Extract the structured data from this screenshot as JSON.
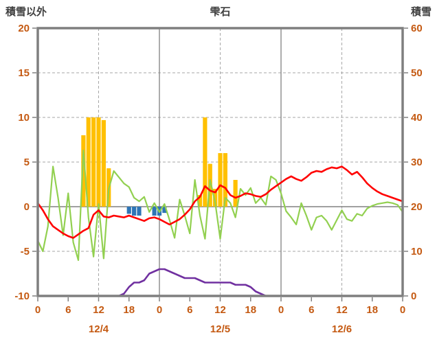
{
  "header": {
    "left_axis_title": "積雪以外",
    "chart_title": "雫石",
    "right_axis_title": "積雪"
  },
  "colors": {
    "background": "#FFFFFF",
    "border": "#7F7F7F",
    "axis_line": "#808080",
    "grid": "#A6A6A6",
    "axis_text": "#C45911",
    "title_text": "#3F3F3F"
  },
  "chart_data": {
    "type": "mixed",
    "title": "雫石",
    "left_axis": {
      "title": "積雪以外",
      "min": -10,
      "max": 20,
      "ticks": [
        20,
        15,
        10,
        5,
        0,
        -5,
        -10
      ]
    },
    "right_axis": {
      "title": "積雪",
      "min": 0,
      "max": 60,
      "ticks": [
        60,
        50,
        40,
        30,
        20,
        10,
        0
      ]
    },
    "x_axis": {
      "hours_total": 72,
      "tick_step": 6,
      "tick_labels": [
        "0",
        "6",
        "12",
        "18",
        "0",
        "6",
        "12",
        "18",
        "0",
        "6",
        "12",
        "18",
        "0"
      ],
      "date_labels": [
        {
          "label": "12/4",
          "hour": 12
        },
        {
          "label": "12/5",
          "hour": 36
        },
        {
          "label": "12/6",
          "hour": 60
        }
      ]
    },
    "grid": {
      "h_dashed": [
        15,
        10,
        5,
        -5
      ],
      "h_solid": [
        0
      ],
      "v_dashed": [
        12,
        36,
        60
      ],
      "v_solid": [
        24,
        48
      ]
    },
    "series": {
      "orange_bars": {
        "axis": "left",
        "color": "#FFC000",
        "points": [
          {
            "hour": 9,
            "value": 8.0
          },
          {
            "hour": 10,
            "value": 10.0
          },
          {
            "hour": 11,
            "value": 10.0
          },
          {
            "hour": 12,
            "value": 10.0
          },
          {
            "hour": 13,
            "value": 9.7
          },
          {
            "hour": 14,
            "value": 4.3
          },
          {
            "hour": 32,
            "value": 1.3
          },
          {
            "hour": 33,
            "value": 10.0
          },
          {
            "hour": 34,
            "value": 4.8
          },
          {
            "hour": 35,
            "value": 2.0
          },
          {
            "hour": 36,
            "value": 6.0
          },
          {
            "hour": 37,
            "value": 6.0
          },
          {
            "hour": 39,
            "value": 3.0
          }
        ]
      },
      "blue_bars": {
        "axis": "left",
        "color": "#2E75B6",
        "points": [
          {
            "hour": 18,
            "value": -0.8
          },
          {
            "hour": 19,
            "value": -1.0
          },
          {
            "hour": 20,
            "value": -1.0
          },
          {
            "hour": 23,
            "value": -1.0
          },
          {
            "hour": 24,
            "value": -1.0
          },
          {
            "hour": 25,
            "value": -0.7
          }
        ]
      },
      "red_line": {
        "axis": "left",
        "color": "#FF0000",
        "start_hour": 0,
        "step": 1,
        "values": [
          0.4,
          -0.4,
          -1.4,
          -2.2,
          -2.6,
          -3.0,
          -3.3,
          -3.5,
          -3.1,
          -2.7,
          -2.4,
          -0.9,
          -0.4,
          -1.1,
          -1.2,
          -1.0,
          -1.1,
          -1.2,
          -1.0,
          -1.2,
          -1.4,
          -1.6,
          -1.3,
          -1.2,
          -1.4,
          -1.7,
          -2.0,
          -1.7,
          -1.4,
          -0.9,
          -0.3,
          0.6,
          1.1,
          2.3,
          1.8,
          1.6,
          2.4,
          2.1,
          1.3,
          1.0,
          1.2,
          1.5,
          1.4,
          1.2,
          1.1,
          1.4,
          1.9,
          2.3,
          2.7,
          3.1,
          3.4,
          3.1,
          2.9,
          3.3,
          3.8,
          4.0,
          3.9,
          4.2,
          4.4,
          4.3,
          4.5,
          4.1,
          3.6,
          3.9,
          3.3,
          2.6,
          2.1,
          1.7,
          1.4,
          1.2,
          1.0,
          0.8,
          0.6
        ]
      },
      "green_line": {
        "axis": "left",
        "color": "#92D050",
        "start_hour": 0,
        "step": 1,
        "values": [
          -3.8,
          -5.0,
          -2.2,
          4.5,
          1.0,
          -3.2,
          1.5,
          -4.0,
          -6.0,
          6.3,
          -1.2,
          -5.6,
          0.3,
          -5.8,
          2.0,
          4.0,
          3.3,
          2.6,
          2.2,
          1.0,
          0.6,
          1.1,
          -0.6,
          0.4,
          -0.6,
          0.3,
          -1.5,
          -3.5,
          0.8,
          -1.0,
          -3.0,
          3.0,
          -1.0,
          -3.6,
          3.0,
          0.5,
          -3.6,
          1.0,
          0.4,
          -1.2,
          2.0,
          1.3,
          2.1,
          0.4,
          1.0,
          0.2,
          3.4,
          3.0,
          1.5,
          -0.5,
          -1.2,
          -2.0,
          0.4,
          -1.0,
          -2.6,
          -1.2,
          -1.0,
          -1.6,
          -2.6,
          -1.5,
          -0.4,
          -1.4,
          -1.6,
          -0.8,
          -1.0,
          -0.2,
          0.1,
          0.3,
          0.4,
          0.5,
          0.4,
          0.2,
          -0.6
        ]
      },
      "purple_line": {
        "axis": "right",
        "color": "#7030A0",
        "start_hour": 0,
        "step": 1,
        "values": [
          0,
          0,
          0,
          0,
          0,
          0,
          0,
          0,
          0,
          0,
          0,
          0,
          0,
          0,
          0,
          0,
          0,
          0.5,
          2,
          3,
          3,
          3.5,
          5,
          5.5,
          6,
          6,
          5.5,
          5,
          4.5,
          4,
          4,
          4,
          3.5,
          3,
          3,
          3,
          3,
          3,
          3,
          2.5,
          2.5,
          2.5,
          2,
          1,
          0.5,
          0,
          0,
          0,
          0,
          0,
          0,
          0,
          0,
          0,
          0,
          0,
          0,
          0,
          0,
          0,
          0,
          0,
          0,
          0,
          0,
          0,
          0,
          0,
          0,
          0,
          0,
          0,
          0
        ]
      }
    }
  }
}
